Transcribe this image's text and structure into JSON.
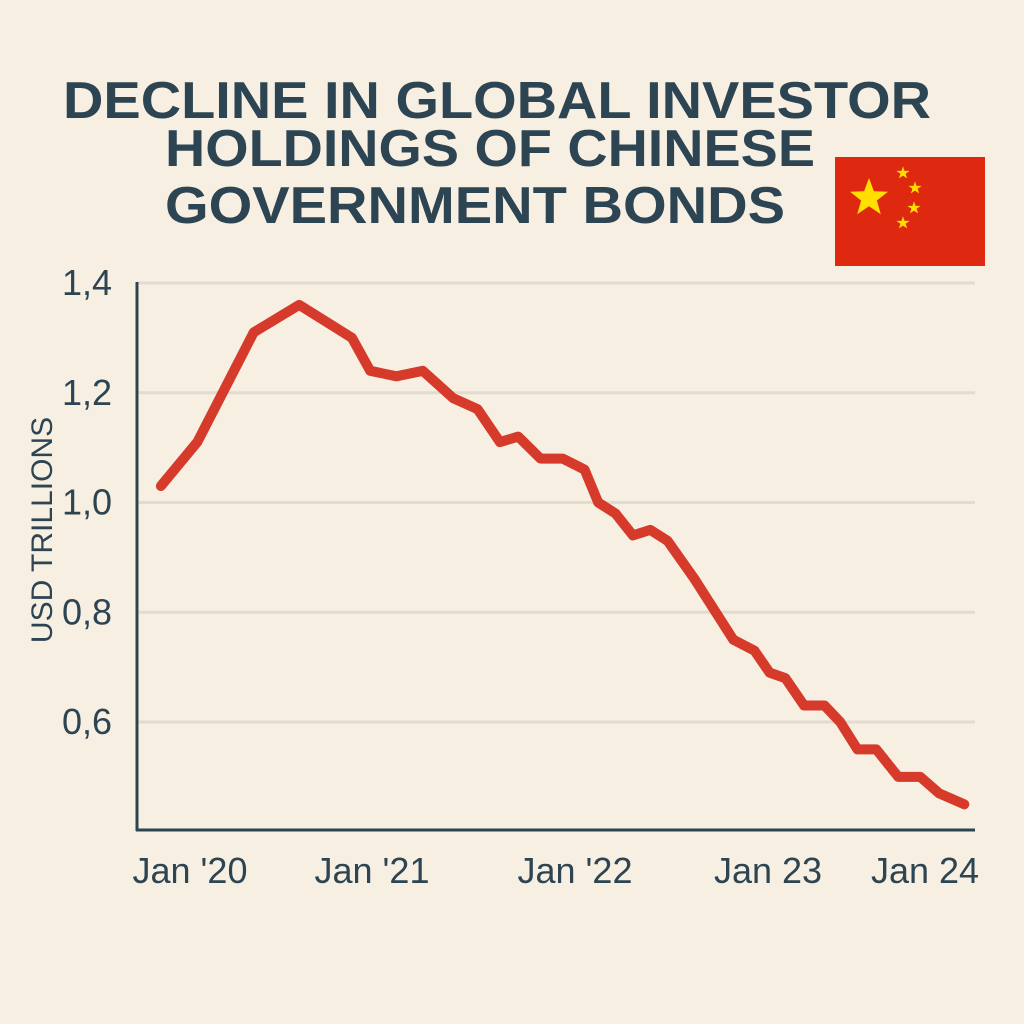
{
  "chart_data": {
    "type": "line",
    "title": [
      "DECLINE IN GLOBAL INVESTOR",
      "HOLDINGS OF CHINESE",
      "GOVERNMENT BONDS"
    ],
    "xlabel": "",
    "ylabel": "USD TRILLIONS",
    "x_ticks": [
      {
        "label": "Jan '20",
        "year": 2020
      },
      {
        "label": "Jan '21",
        "year": 2021
      },
      {
        "label": "Jan '22",
        "year": 2022
      },
      {
        "label": "Jan 23",
        "year": 2023
      },
      {
        "label": "Jan 24",
        "year": 2024
      }
    ],
    "y_ticks": [
      {
        "label": "1,4",
        "value": 1.4
      },
      {
        "label": "1,2",
        "value": 1.2
      },
      {
        "label": "1,0",
        "value": 1.0
      },
      {
        "label": "0,8",
        "value": 0.8
      },
      {
        "label": "0,6",
        "value": 0.6
      }
    ],
    "ylim": [
      0.41,
      1.4
    ],
    "grid": true,
    "line_color": "#d63a2a",
    "series": [
      {
        "x": [
          2019.84,
          2020.04,
          2020.35,
          2020.6,
          2020.89,
          2020.99,
          2021.12,
          2021.25,
          2021.4,
          2021.52,
          2021.63,
          2021.72,
          2021.83,
          2021.94,
          2022.05,
          2022.12,
          2022.21,
          2022.3,
          2022.39,
          2022.48,
          2022.62,
          2022.82,
          2022.93,
          2023.01,
          2023.11,
          2023.23,
          2023.36,
          2023.46,
          2023.57,
          2023.69,
          2023.83,
          2023.97,
          2024.09,
          2024.25
        ],
        "values": [
          1.03,
          1.11,
          1.31,
          1.36,
          1.3,
          1.24,
          1.23,
          1.24,
          1.19,
          1.17,
          1.11,
          1.12,
          1.08,
          1.08,
          1.06,
          1.0,
          0.98,
          0.94,
          0.95,
          0.93,
          0.86,
          0.75,
          0.73,
          0.69,
          0.68,
          0.63,
          0.63,
          0.6,
          0.55,
          0.55,
          0.5,
          0.5,
          0.47,
          0.45
        ]
      }
    ]
  },
  "flag": {
    "name": "china-flag",
    "red": "#de2910",
    "yellow": "#ffde00"
  },
  "colors": {
    "background": "#f8efe3",
    "text": "#2d4452",
    "grid": "#e3dbd0"
  }
}
